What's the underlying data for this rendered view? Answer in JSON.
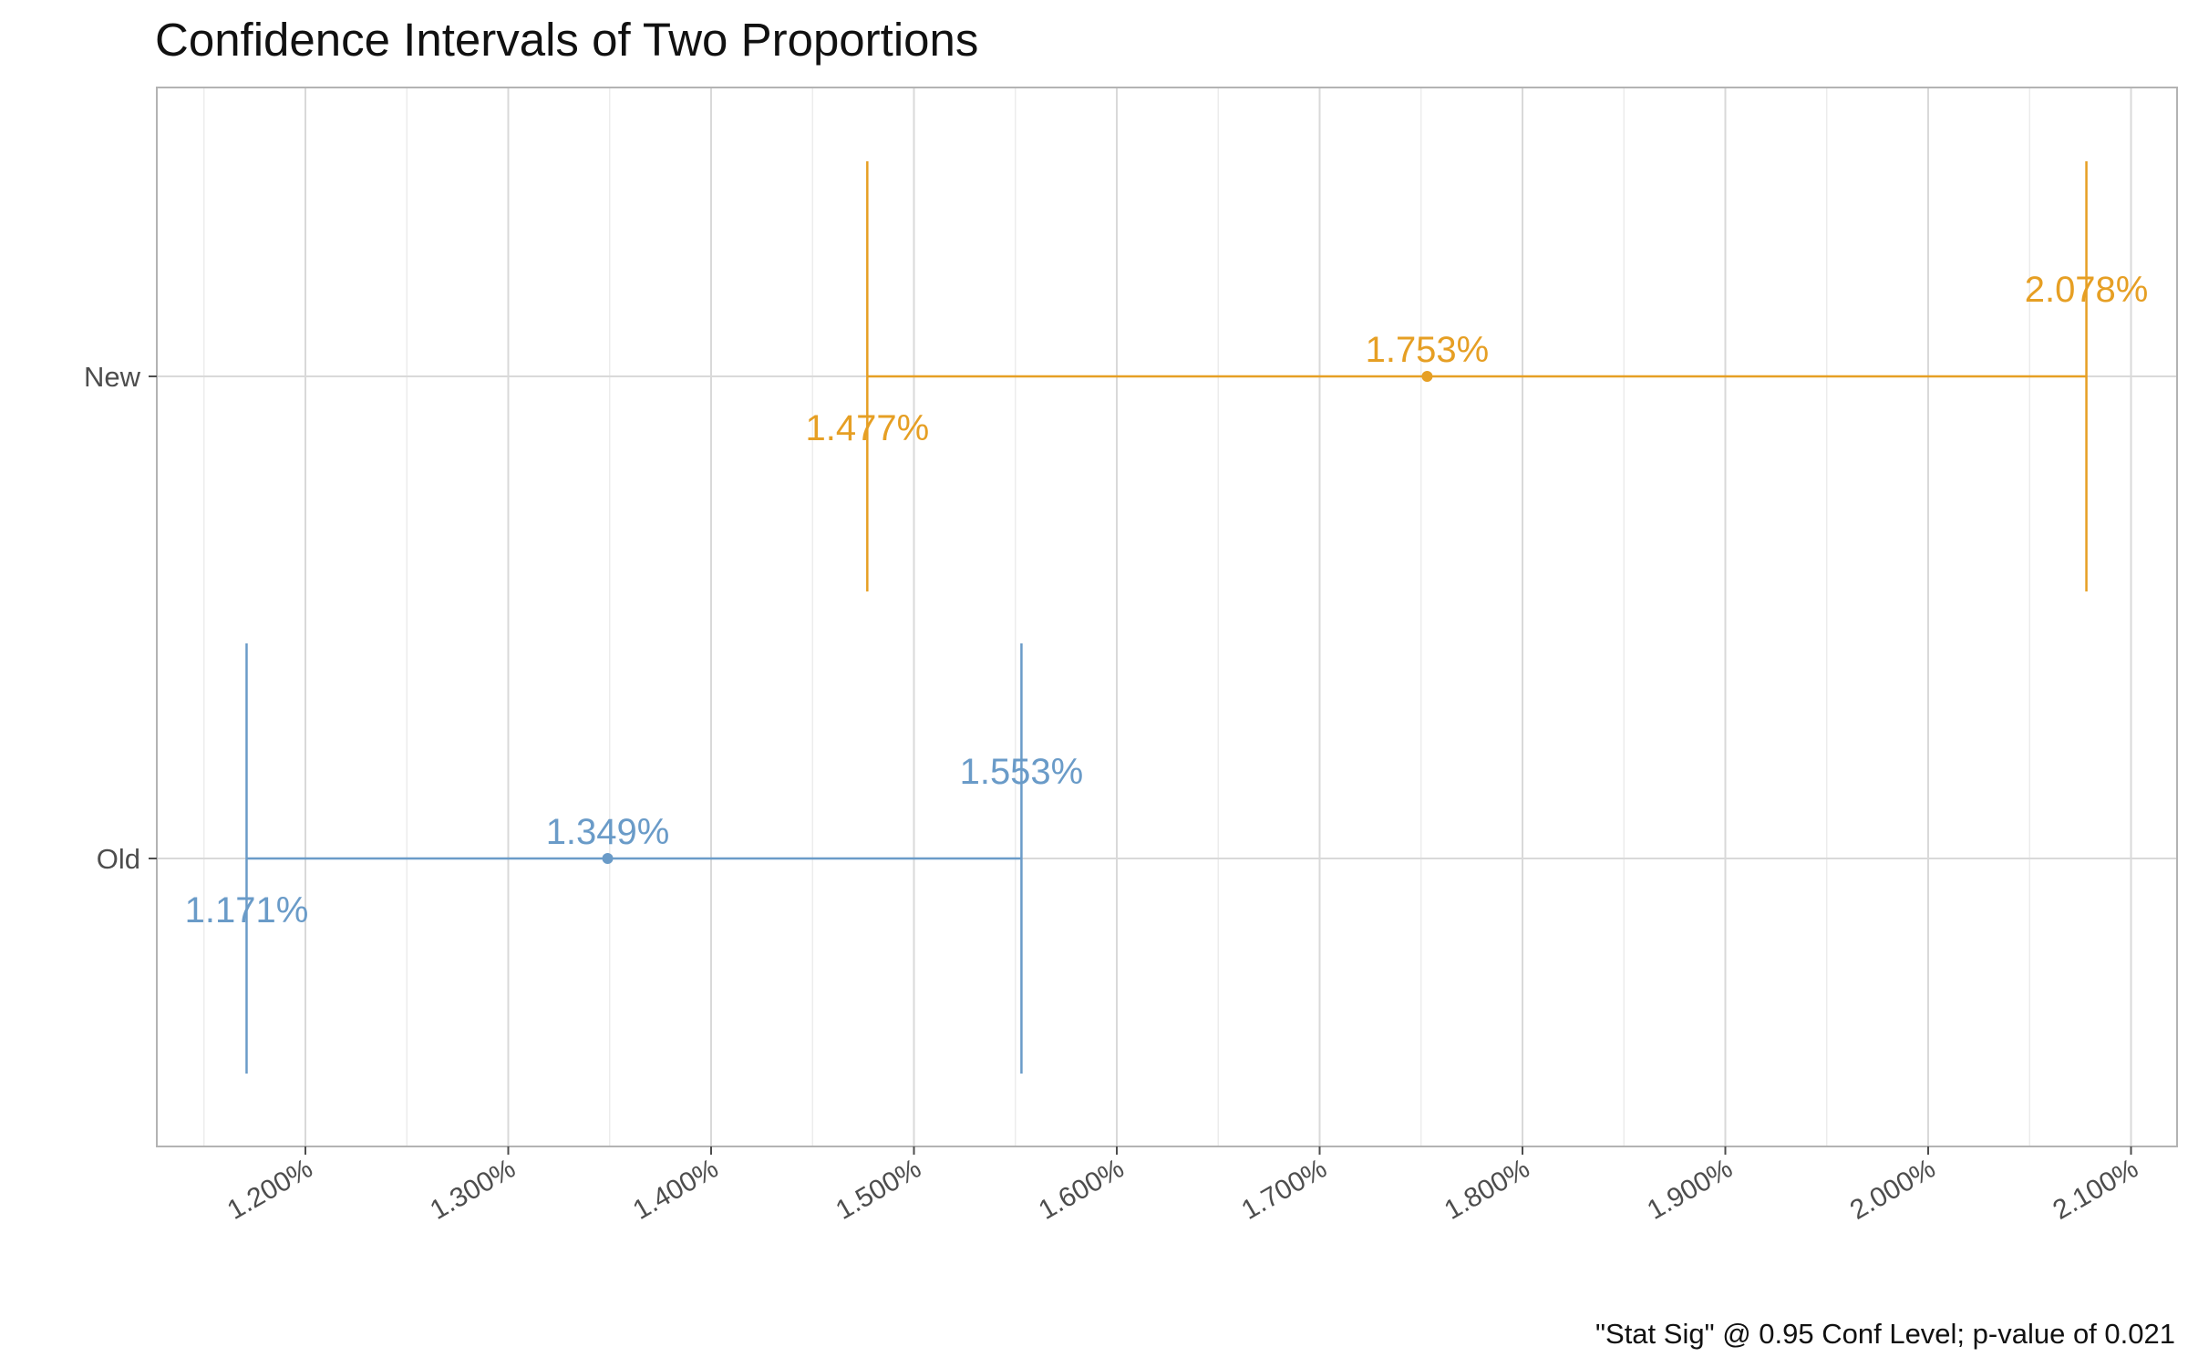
{
  "chart_data": {
    "type": "errorbar",
    "title": "Confidence Intervals of Two Proportions",
    "caption": "\"Stat Sig\" @ 0.95 Conf Level; p-value of 0.021",
    "xlim": [
      1.15,
      2.1
    ],
    "x_ticks": [
      {
        "value": 1.2,
        "label": "1.200%"
      },
      {
        "value": 1.3,
        "label": "1.300%"
      },
      {
        "value": 1.4,
        "label": "1.400%"
      },
      {
        "value": 1.5,
        "label": "1.500%"
      },
      {
        "value": 1.6,
        "label": "1.600%"
      },
      {
        "value": 1.7,
        "label": "1.700%"
      },
      {
        "value": 1.8,
        "label": "1.800%"
      },
      {
        "value": 1.9,
        "label": "1.900%"
      },
      {
        "value": 2.0,
        "label": "2.000%"
      },
      {
        "value": 2.1,
        "label": "2.100%"
      }
    ],
    "grid": true,
    "series": [
      {
        "name": "New",
        "color": "#E69F24",
        "lower": 1.477,
        "estimate": 1.753,
        "upper": 2.078,
        "lower_label": "1.477%",
        "estimate_label": "1.753%",
        "upper_label": "2.078%"
      },
      {
        "name": "Old",
        "color": "#6A9BC8",
        "lower": 1.171,
        "estimate": 1.349,
        "upper": 1.553,
        "lower_label": "1.171%",
        "estimate_label": "1.349%",
        "upper_label": "1.553%"
      }
    ]
  }
}
